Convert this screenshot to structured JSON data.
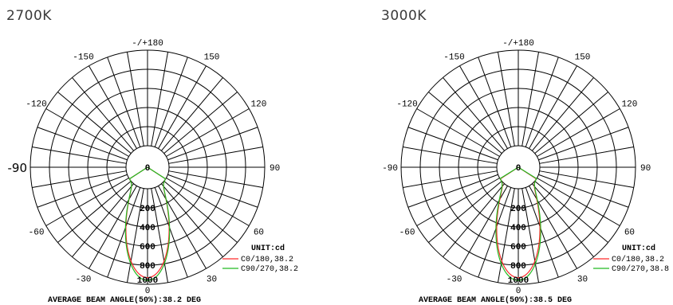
{
  "chart_data": [
    {
      "type": "polar",
      "title": "2700K",
      "angle_labels": [
        "-/+180",
        "150",
        "120",
        "90",
        "60",
        "30",
        "0",
        "-30",
        "-60",
        "-90",
        "-120",
        "-150"
      ],
      "radial_labels": [
        "0",
        "200",
        "400",
        "600",
        "800",
        "1000"
      ],
      "rlim": [
        0,
        1000
      ],
      "unit_label": "UNIT:cd",
      "series": [
        {
          "name": "C0/180,38.2",
          "color": "#ff2a2a",
          "peak": 930,
          "beam_angle": 38.2
        },
        {
          "name": "C90/270,38.2",
          "color": "#22bb22",
          "peak": 960,
          "beam_angle": 38.2
        }
      ],
      "footer": "AVERAGE BEAM ANGLE(50%):38.2 DEG"
    },
    {
      "type": "polar",
      "title": "3000K",
      "angle_labels": [
        "-/+180",
        "150",
        "120",
        "90",
        "60",
        "30",
        "0",
        "-30",
        "-60",
        "-90",
        "-120",
        "-150"
      ],
      "radial_labels": [
        "0",
        "200",
        "400",
        "600",
        "800",
        "1000"
      ],
      "rlim": [
        0,
        1000
      ],
      "unit_label": "UNIT:cd",
      "series": [
        {
          "name": "C0/180,38.2",
          "color": "#ff2a2a",
          "peak": 930,
          "beam_angle": 38.2
        },
        {
          "name": "C90/270,38.8",
          "color": "#22bb22",
          "peak": 960,
          "beam_angle": 38.8
        }
      ],
      "footer": "AVERAGE BEAM ANGLE(50%):38.5 DEG"
    }
  ]
}
